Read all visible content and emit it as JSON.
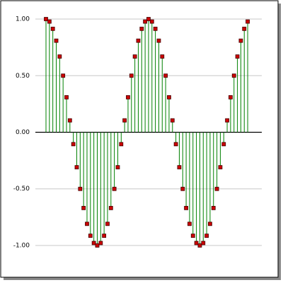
{
  "chart_data": {
    "type": "stem",
    "values": [
      1,
      0.978,
      0.914,
      0.809,
      0.669,
      0.5,
      0.309,
      0.105,
      -0.105,
      -0.309,
      -0.5,
      -0.669,
      -0.809,
      -0.914,
      -0.978,
      -1,
      -0.978,
      -0.914,
      -0.809,
      -0.669,
      -0.5,
      -0.309,
      -0.105,
      0.105,
      0.309,
      0.5,
      0.669,
      0.809,
      0.914,
      0.978,
      1,
      0.978,
      0.914,
      0.809,
      0.669,
      0.5,
      0.309,
      0.105,
      -0.105,
      -0.309,
      -0.5,
      -0.669,
      -0.809,
      -0.914,
      -0.978,
      -1,
      -0.978,
      -0.914,
      -0.809,
      -0.669,
      -0.5,
      -0.309,
      -0.105,
      0.105,
      0.309,
      0.5,
      0.669,
      0.809,
      0.914,
      0.978
    ],
    "color": "#008000",
    "marker_color": "#cc0000",
    "ylim": [
      -1.05,
      1.05
    ],
    "yticks": [
      {
        "value": -1,
        "label": "-1.00"
      },
      {
        "value": -0.5,
        "label": "-0.50"
      },
      {
        "value": 0,
        "label": "0.00"
      },
      {
        "value": 0.5,
        "label": "0.50"
      },
      {
        "value": 1,
        "label": "1.00"
      }
    ],
    "grid": true
  }
}
